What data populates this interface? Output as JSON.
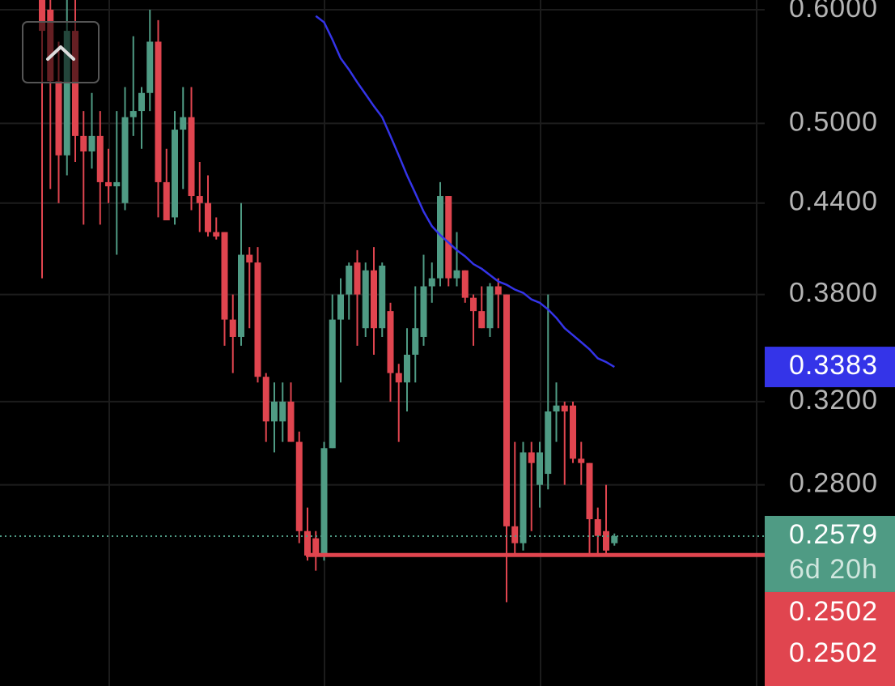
{
  "chart_data": {
    "type": "candlestick",
    "log_scale": true,
    "grid": true,
    "up_color": "#4f9b84",
    "down_color": "#e0454f",
    "ylim": [
      0.2028,
      0.6094
    ],
    "yticks": [
      {
        "value": 0.6,
        "label": "0.6000"
      },
      {
        "value": 0.5,
        "label": "0.5000"
      },
      {
        "value": 0.44,
        "label": "0.4400"
      },
      {
        "value": 0.38,
        "label": "0.3800"
      },
      {
        "value": 0.32,
        "label": "0.3200"
      },
      {
        "value": 0.28,
        "label": "0.2800"
      }
    ],
    "open": [
      0.61,
      0.6,
      0.535,
      0.475,
      0.58,
      0.49,
      0.478,
      0.49,
      0.455,
      0.452,
      0.44,
      0.505,
      0.51,
      0.525,
      0.57,
      0.455,
      0.43,
      0.495,
      0.505,
      0.445,
      0.44,
      0.42,
      0.42,
      0.365,
      0.355,
      0.405,
      0.4,
      0.333,
      0.31,
      0.31,
      0.32,
      0.3,
      0.26,
      0.257,
      0.25,
      0.297,
      0.365,
      0.38,
      0.4,
      0.36,
      0.395,
      0.36,
      0.37,
      0.335,
      0.33,
      0.345,
      0.355,
      0.385,
      0.39,
      0.445,
      0.39,
      0.395,
      0.378,
      0.37,
      0.36,
      0.385,
      0.38,
      0.262,
      0.255,
      0.295,
      0.28,
      0.285,
      0.315,
      0.318,
      0.318,
      0.292,
      0.29,
      0.265,
      0.26,
      0.255
    ],
    "high": [
      0.63,
      0.63,
      0.57,
      0.63,
      0.63,
      0.51,
      0.525,
      0.51,
      0.48,
      0.51,
      0.53,
      0.575,
      0.53,
      0.6,
      0.59,
      0.48,
      0.51,
      0.53,
      0.53,
      0.47,
      0.46,
      0.43,
      0.42,
      0.38,
      0.44,
      0.41,
      0.41,
      0.335,
      0.33,
      0.33,
      0.33,
      0.305,
      0.27,
      0.26,
      0.3,
      0.38,
      0.39,
      0.4,
      0.408,
      0.4,
      0.41,
      0.4,
      0.375,
      0.34,
      0.36,
      0.385,
      0.405,
      0.4,
      0.455,
      0.445,
      0.42,
      0.395,
      0.38,
      0.385,
      0.387,
      0.39,
      0.38,
      0.3,
      0.3,
      0.3,
      0.3,
      0.38,
      0.33,
      0.32,
      0.32,
      0.3,
      0.29,
      0.27,
      0.28,
      0.259
    ],
    "low": [
      0.39,
      0.45,
      0.44,
      0.46,
      0.47,
      0.425,
      0.465,
      0.425,
      0.44,
      0.405,
      0.435,
      0.49,
      0.48,
      0.51,
      0.43,
      0.428,
      0.425,
      0.45,
      0.435,
      0.42,
      0.417,
      0.415,
      0.35,
      0.335,
      0.35,
      0.36,
      0.33,
      0.3,
      0.295,
      0.3,
      0.3,
      0.255,
      0.248,
      0.244,
      0.248,
      0.297,
      0.33,
      0.365,
      0.35,
      0.355,
      0.345,
      0.355,
      0.32,
      0.3,
      0.315,
      0.33,
      0.35,
      0.375,
      0.385,
      0.385,
      0.385,
      0.375,
      0.35,
      0.36,
      0.355,
      0.36,
      0.232,
      0.25,
      0.252,
      0.26,
      0.27,
      0.278,
      0.3,
      0.28,
      0.29,
      0.28,
      0.25,
      0.25,
      0.25,
      0.254
    ],
    "close": [
      0.58,
      0.535,
      0.475,
      0.58,
      0.49,
      0.478,
      0.49,
      0.455,
      0.452,
      0.455,
      0.505,
      0.51,
      0.525,
      0.57,
      0.455,
      0.428,
      0.495,
      0.505,
      0.445,
      0.44,
      0.42,
      0.417,
      0.365,
      0.355,
      0.405,
      0.4,
      0.333,
      0.31,
      0.32,
      0.32,
      0.3,
      0.26,
      0.25,
      0.25,
      0.297,
      0.365,
      0.38,
      0.398,
      0.38,
      0.395,
      0.36,
      0.398,
      0.335,
      0.33,
      0.345,
      0.36,
      0.385,
      0.39,
      0.445,
      0.39,
      0.395,
      0.378,
      0.37,
      0.36,
      0.385,
      0.38,
      0.262,
      0.255,
      0.295,
      0.29,
      0.295,
      0.315,
      0.318,
      0.315,
      0.292,
      0.29,
      0.265,
      0.258,
      0.252,
      0.2579
    ],
    "ma": {
      "color": "#3434e8",
      "values": [
        null,
        null,
        null,
        null,
        null,
        null,
        null,
        null,
        null,
        null,
        null,
        null,
        null,
        null,
        null,
        null,
        null,
        null,
        null,
        null,
        null,
        null,
        null,
        null,
        null,
        null,
        null,
        null,
        null,
        null,
        null,
        null,
        null,
        0.594,
        0.588,
        0.572,
        0.555,
        0.545,
        0.534,
        0.524,
        0.514,
        0.505,
        0.49,
        0.475,
        0.46,
        0.447,
        0.434,
        0.424,
        0.418,
        0.413,
        0.408,
        0.404,
        0.399,
        0.396,
        0.392,
        0.388,
        0.386,
        0.383,
        0.381,
        0.377,
        0.375,
        0.371,
        0.366,
        0.36,
        0.356,
        0.352,
        0.348,
        0.343,
        0.341,
        0.3383
      ]
    },
    "ma_badge": {
      "value": 0.3383,
      "label": "0.3383"
    },
    "current_price": {
      "value": 0.2579,
      "label": "0.2579",
      "countdown": "6d 20h"
    },
    "level": {
      "value": 0.2502,
      "color": "#e0454f",
      "labels": [
        "0.2502",
        "0.2502"
      ]
    }
  }
}
